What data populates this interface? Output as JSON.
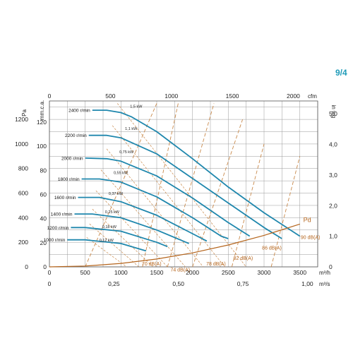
{
  "page_number": "9/4",
  "colors": {
    "curve": "#1f87ad",
    "sound": "#c98a4c",
    "pd": "#b5651d",
    "grid": "#9a9a9a",
    "accent": "#1e9bb8"
  },
  "chart_data": {
    "type": "line",
    "title": "",
    "grid": true,
    "axes": {
      "x_m3h": {
        "unit": "m³/h",
        "range": [
          0,
          3750
        ],
        "ticks": [
          0,
          500,
          1000,
          1500,
          2000,
          2500,
          3000,
          3500
        ]
      },
      "x_m3s": {
        "unit": "m³/s",
        "range": [
          0,
          1.04
        ],
        "ticks": [
          "0",
          "0,25",
          "0,50",
          "0,75",
          "1,00"
        ]
      },
      "x_cfm": {
        "unit": "cfm",
        "range": [
          0,
          2200
        ],
        "ticks": [
          "0",
          "500",
          "1000",
          "1500",
          "2000"
        ]
      },
      "y_pa": {
        "unit": "Pa",
        "range": [
          0,
          1350
        ],
        "ticks": [
          0,
          200,
          400,
          600,
          800,
          1000,
          1200
        ]
      },
      "y_mmca": {
        "unit": "mm.c.a.",
        "range": [
          0,
          137.6
        ],
        "ticks": [
          0,
          20,
          40,
          60,
          80,
          100,
          120
        ]
      },
      "y_inwg": {
        "unit": "in wg",
        "range": [
          0,
          5.42
        ],
        "ticks": [
          "0",
          "1,0",
          "2,0",
          "3,0",
          "4,0",
          "5,0"
        ]
      }
    },
    "series": [
      {
        "name": "2400 r/min",
        "x": [
          600,
          800,
          1000,
          1150,
          1500,
          2000,
          2500,
          3000,
          3500
        ],
        "y": [
          1275,
          1275,
          1255,
          1220,
          1100,
          880,
          650,
          440,
          250
        ]
      },
      {
        "name": "2200 r/min",
        "x": [
          550,
          800,
          1000,
          1500,
          2000,
          2500,
          3000,
          3250
        ],
        "y": [
          1070,
          1070,
          1050,
          920,
          720,
          520,
          320,
          230
        ]
      },
      {
        "name": "2000 r/min",
        "x": [
          500,
          800,
          1000,
          1500,
          2000,
          2500,
          2800
        ],
        "y": [
          885,
          880,
          860,
          740,
          560,
          360,
          250
        ]
      },
      {
        "name": "1800 r/min",
        "x": [
          450,
          700,
          1000,
          1500,
          2000,
          2400,
          2500
        ],
        "y": [
          715,
          715,
          690,
          570,
          400,
          250,
          230
        ]
      },
      {
        "name": "1600 r/min",
        "x": [
          400,
          700,
          1000,
          1500,
          2000,
          2200
        ],
        "y": [
          565,
          565,
          530,
          420,
          270,
          210
        ]
      },
      {
        "name": "1400 r/min",
        "x": [
          350,
          600,
          1000,
          1500,
          1950
        ],
        "y": [
          430,
          430,
          400,
          300,
          190
        ]
      },
      {
        "name": "1200 r/min",
        "x": [
          300,
          500,
          1000,
          1500,
          1650
        ],
        "y": [
          320,
          320,
          290,
          200,
          165
        ]
      },
      {
        "name": "1000 r/min",
        "x": [
          250,
          500,
          1000,
          1350
        ],
        "y": [
          220,
          220,
          190,
          130
        ]
      }
    ],
    "power_lines": [
      {
        "label": "1,5 kW",
        "from": [
          950,
          1330
        ],
        "to": [
          2750,
          0
        ]
      },
      {
        "label": "1,1 kW",
        "from": [
          880,
          1150
        ],
        "to": [
          2450,
          0
        ]
      },
      {
        "label": "0,75 kW",
        "from": [
          800,
          960
        ],
        "to": [
          2150,
          0
        ]
      },
      {
        "label": "0,55 kW",
        "from": [
          720,
          790
        ],
        "to": [
          1900,
          0
        ]
      },
      {
        "label": "0,37 kW",
        "from": [
          650,
          620
        ],
        "to": [
          1650,
          0
        ]
      },
      {
        "label": "0,25 kW",
        "from": [
          600,
          470
        ],
        "to": [
          1450,
          0
        ]
      },
      {
        "label": "0,18 kW",
        "from": [
          560,
          350
        ],
        "to": [
          1250,
          0
        ]
      },
      {
        "label": "0,12 kW",
        "from": [
          520,
          240
        ],
        "to": [
          1080,
          0
        ]
      }
    ],
    "sound_lines": [
      {
        "label": "70 dB(A)",
        "from": [
          500,
          0
        ],
        "to": [
          1500,
          1330
        ]
      },
      {
        "label": "74 dB(A)",
        "from": [
          1300,
          0
        ],
        "to": [
          1800,
          1330
        ]
      },
      {
        "label": "78 dB(A)",
        "from": [
          1650,
          0
        ],
        "to": [
          2300,
          1330
        ]
      },
      {
        "label": "82 dB(A)",
        "from": [
          2000,
          0
        ],
        "to": [
          2700,
          1200
        ]
      },
      {
        "label": "86 dB(A)",
        "from": [
          2550,
          0
        ],
        "to": [
          3000,
          1000
        ]
      },
      {
        "label": "90 dB(A)",
        "from": [
          3100,
          0
        ],
        "to": [
          3500,
          900
        ]
      }
    ],
    "pd_curve": {
      "label": "Pd",
      "x": [
        0,
        500,
        1000,
        1500,
        2000,
        2500,
        3000,
        3500
      ],
      "y": [
        0,
        7,
        28,
        64,
        114,
        178,
        256,
        348
      ]
    }
  }
}
